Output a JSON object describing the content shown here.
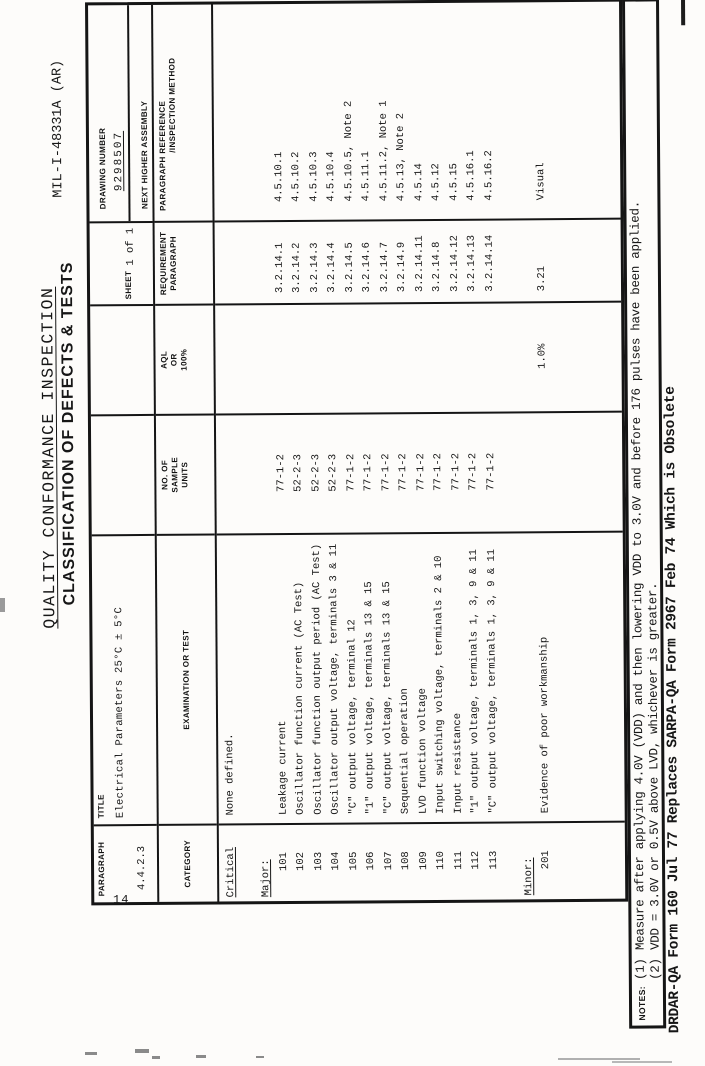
{
  "page": {
    "spec_number": "MIL-I-48331A (AR)",
    "heading_line1": "QUALITY CONFORMANCE INSPECTION",
    "heading_line2": "CLASSIFICATION OF DEFECTS & TESTS",
    "page_number": "14"
  },
  "form_header": {
    "paragraph_label": "PARAGRAPH",
    "paragraph_value": "4.4.2.3",
    "title_label": "TITLE",
    "title_value": "Electrical Parameters 25°C ± 5°C",
    "sheet_label": "SHEET",
    "sheet_value": "1 of 1",
    "drawing_number_label": "DRAWING NUMBER",
    "drawing_number_value": "9298507",
    "next_higher_assembly_label": "NEXT HIGHER ASSEMBLY"
  },
  "columns": {
    "category": "CATEGORY",
    "examination": "EXAMINATION OR TEST",
    "sample_line1": "NO. OF",
    "sample_line2": "SAMPLE",
    "sample_line3": "UNITS",
    "aql_line1": "AQL",
    "aql_line2": "OR",
    "aql_line3": "100%",
    "requirement_line1": "REQUIREMENT",
    "requirement_line2": "PARAGRAPH",
    "reference_line1": "PARAGRAPH REFERENCE",
    "reference_line2": "/INSPECTION METHOD"
  },
  "body": {
    "critical_label": "Critical",
    "critical_examination": "None defined.",
    "major_label": "Major:",
    "major_rows": [
      {
        "num": "101",
        "exam": "Leakage current",
        "sample": "77-1-2",
        "req": "3.2.14.1",
        "ref": "4.5.10.1"
      },
      {
        "num": "102",
        "exam": "Oscillator function current (AC Test)",
        "sample": "52-2-3",
        "req": "3.2.14.2",
        "ref": "4.5.10.2"
      },
      {
        "num": "103",
        "exam": "Oscillator function output period (AC Test)",
        "sample": "52-2-3",
        "req": "3.2.14.3",
        "ref": "4.5.10.3"
      },
      {
        "num": "104",
        "exam": "Oscillator output voltage, terminals 3 & 11",
        "sample": "52-2-3",
        "req": "3.2.14.4",
        "ref": "4.5.10.4"
      },
      {
        "num": "105",
        "exam": "\"C\" output voltage, terminal 12",
        "sample": "77-1-2",
        "req": "3.2.14.5",
        "ref": "4.5.10.5, Note 2"
      },
      {
        "num": "106",
        "exam": "\"1\" output voltage, terminals 13 & 15",
        "sample": "77-1-2",
        "req": "3.2.14.6",
        "ref": "4.5.11.1"
      },
      {
        "num": "107",
        "exam": "\"C\" output voltage, terminals 13 & 15",
        "sample": "77-1-2",
        "req": "3.2.14.7",
        "ref": "4.5.11.2, Note 1"
      },
      {
        "num": "108",
        "exam": "Sequential operation",
        "sample": "77-1-2",
        "req": "3.2.14.9",
        "ref": "4.5.13, Note 2"
      },
      {
        "num": "109",
        "exam": "LVD function voltage",
        "sample": "77-1-2",
        "req": "3.2.14.11",
        "ref": "4.5.14"
      },
      {
        "num": "110",
        "exam": "Input switching voltage, terminals 2 & 10",
        "sample": "77-1-2",
        "req": "3.2.14.8",
        "ref": "4.5.12"
      },
      {
        "num": "111",
        "exam": "Input resistance",
        "sample": "77-1-2",
        "req": "3.2.14.12",
        "ref": "4.5.15"
      },
      {
        "num": "112",
        "exam": "\"1\" output voltage, terminals 1, 3, 9 & 11",
        "sample": "77-1-2",
        "req": "3.2.14.13",
        "ref": "4.5.16.1"
      },
      {
        "num": "113",
        "exam": "\"C\" output voltage, terminals 1, 3, 9 & 11",
        "sample": "77-1-2",
        "req": "3.2.14.14",
        "ref": "4.5.16.2"
      }
    ],
    "minor_label": "Minor:",
    "minor_row": {
      "num": "201",
      "exam": "Evidence of poor workmanship",
      "aql": "1.0%",
      "req": "3.21",
      "ref": "Visual"
    }
  },
  "notes": {
    "label": "NOTES:",
    "items": [
      {
        "num": "(1)",
        "text": "Measure after applying 4.0V (VDD) and then lowering VDD to 3.0V and before 176 pulses have been applied."
      },
      {
        "num": "(2)",
        "text": "VDD = 3.0V or 0.5V above LVD, whichever is greater."
      }
    ]
  },
  "footer": "DRDAR-QA Form 160 Jul 77 Replaces SARPA-QA Form 2967 Feb 74 Which is Obsolete"
}
